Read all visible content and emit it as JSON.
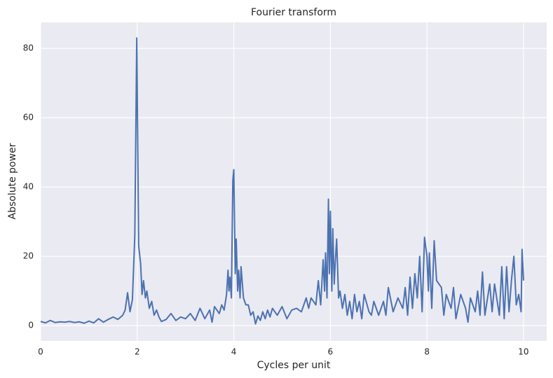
{
  "chart_data": {
    "type": "line",
    "title": "Fourier transform",
    "x_label": "Cycles per unit",
    "y_label": "Absolute power",
    "x": [
      0,
      0.1,
      0.2,
      0.3,
      0.4,
      0.5,
      0.6,
      0.7,
      0.8,
      0.9,
      1.0,
      1.1,
      1.2,
      1.3,
      1.4,
      1.5,
      1.6,
      1.7,
      1.75,
      1.8,
      1.85,
      1.9,
      1.95,
      1.99,
      2.03,
      2.07,
      2.1,
      2.13,
      2.17,
      2.2,
      2.25,
      2.3,
      2.35,
      2.4,
      2.45,
      2.5,
      2.6,
      2.7,
      2.8,
      2.9,
      3.0,
      3.1,
      3.2,
      3.3,
      3.4,
      3.5,
      3.55,
      3.6,
      3.7,
      3.75,
      3.8,
      3.85,
      3.88,
      3.9,
      3.92,
      3.95,
      3.98,
      4.0,
      4.03,
      4.05,
      4.08,
      4.1,
      4.13,
      4.15,
      4.2,
      4.25,
      4.3,
      4.35,
      4.4,
      4.45,
      4.5,
      4.55,
      4.6,
      4.65,
      4.7,
      4.75,
      4.8,
      4.9,
      5.0,
      5.1,
      5.2,
      5.3,
      5.4,
      5.5,
      5.55,
      5.6,
      5.7,
      5.75,
      5.8,
      5.85,
      5.88,
      5.9,
      5.93,
      5.96,
      5.98,
      6.0,
      6.03,
      6.05,
      6.08,
      6.1,
      6.13,
      6.17,
      6.2,
      6.25,
      6.3,
      6.35,
      6.4,
      6.45,
      6.5,
      6.55,
      6.6,
      6.65,
      6.7,
      6.8,
      6.85,
      6.9,
      7.0,
      7.1,
      7.15,
      7.2,
      7.3,
      7.4,
      7.5,
      7.55,
      7.6,
      7.65,
      7.7,
      7.75,
      7.8,
      7.85,
      7.9,
      7.95,
      8.0,
      8.03,
      8.05,
      8.1,
      8.15,
      8.2,
      8.3,
      8.35,
      8.4,
      8.5,
      8.55,
      8.6,
      8.7,
      8.8,
      8.85,
      8.9,
      9.0,
      9.05,
      9.1,
      9.15,
      9.2,
      9.3,
      9.35,
      9.4,
      9.5,
      9.55,
      9.6,
      9.65,
      9.7,
      9.75,
      9.8,
      9.85,
      9.9,
      9.95,
      9.97,
      10.0
    ],
    "series": [
      {
        "name": "Absolute power",
        "color": "#4c72b0",
        "values": [
          1.2,
          0.8,
          1.5,
          0.9,
          1.1,
          1.0,
          1.2,
          0.9,
          1.1,
          0.7,
          1.3,
          0.8,
          2.0,
          1.0,
          1.8,
          2.5,
          1.8,
          3.0,
          4.5,
          9.5,
          4.0,
          7.5,
          26,
          83,
          23,
          18,
          9,
          13,
          8,
          10,
          5,
          7,
          3,
          4.5,
          2.5,
          1.2,
          1.8,
          3.5,
          1.5,
          2.5,
          2.0,
          3.5,
          1.5,
          5.0,
          2.0,
          4.5,
          1.0,
          5.5,
          3.5,
          6,
          4.5,
          9,
          16,
          10,
          14,
          8,
          42,
          45,
          15,
          25,
          10,
          16,
          8,
          17,
          8,
          6,
          6,
          3,
          4,
          0.5,
          2.8,
          1.5,
          4,
          2,
          4.5,
          2.5,
          5,
          3,
          5.5,
          2,
          4.5,
          5,
          4,
          8,
          5,
          8,
          6,
          13,
          6,
          19,
          10,
          21,
          8,
          36.5,
          15,
          33,
          10,
          28,
          12,
          18,
          25,
          8,
          10,
          5,
          9,
          3,
          7,
          2,
          9,
          4,
          7,
          2,
          9,
          4,
          3,
          7,
          3,
          7,
          3,
          11,
          4,
          8,
          5,
          11,
          3,
          14,
          5,
          15,
          8,
          20,
          4,
          25.5,
          20,
          10,
          21,
          5,
          24.5,
          13,
          11,
          3,
          9,
          5,
          11,
          2,
          9,
          5,
          1,
          8,
          4,
          10,
          3,
          15.5,
          3,
          12,
          4,
          12,
          3,
          17,
          2,
          17,
          4,
          13,
          20,
          6,
          9,
          4,
          22,
          13
        ]
      }
    ],
    "xlim": [
      0,
      10.48
    ],
    "ylim": [
      -4.4,
      87.5
    ],
    "xticks": [
      0,
      2,
      4,
      6,
      8,
      10
    ],
    "yticks": [
      0,
      20,
      40,
      60,
      80
    ],
    "grid": true
  }
}
